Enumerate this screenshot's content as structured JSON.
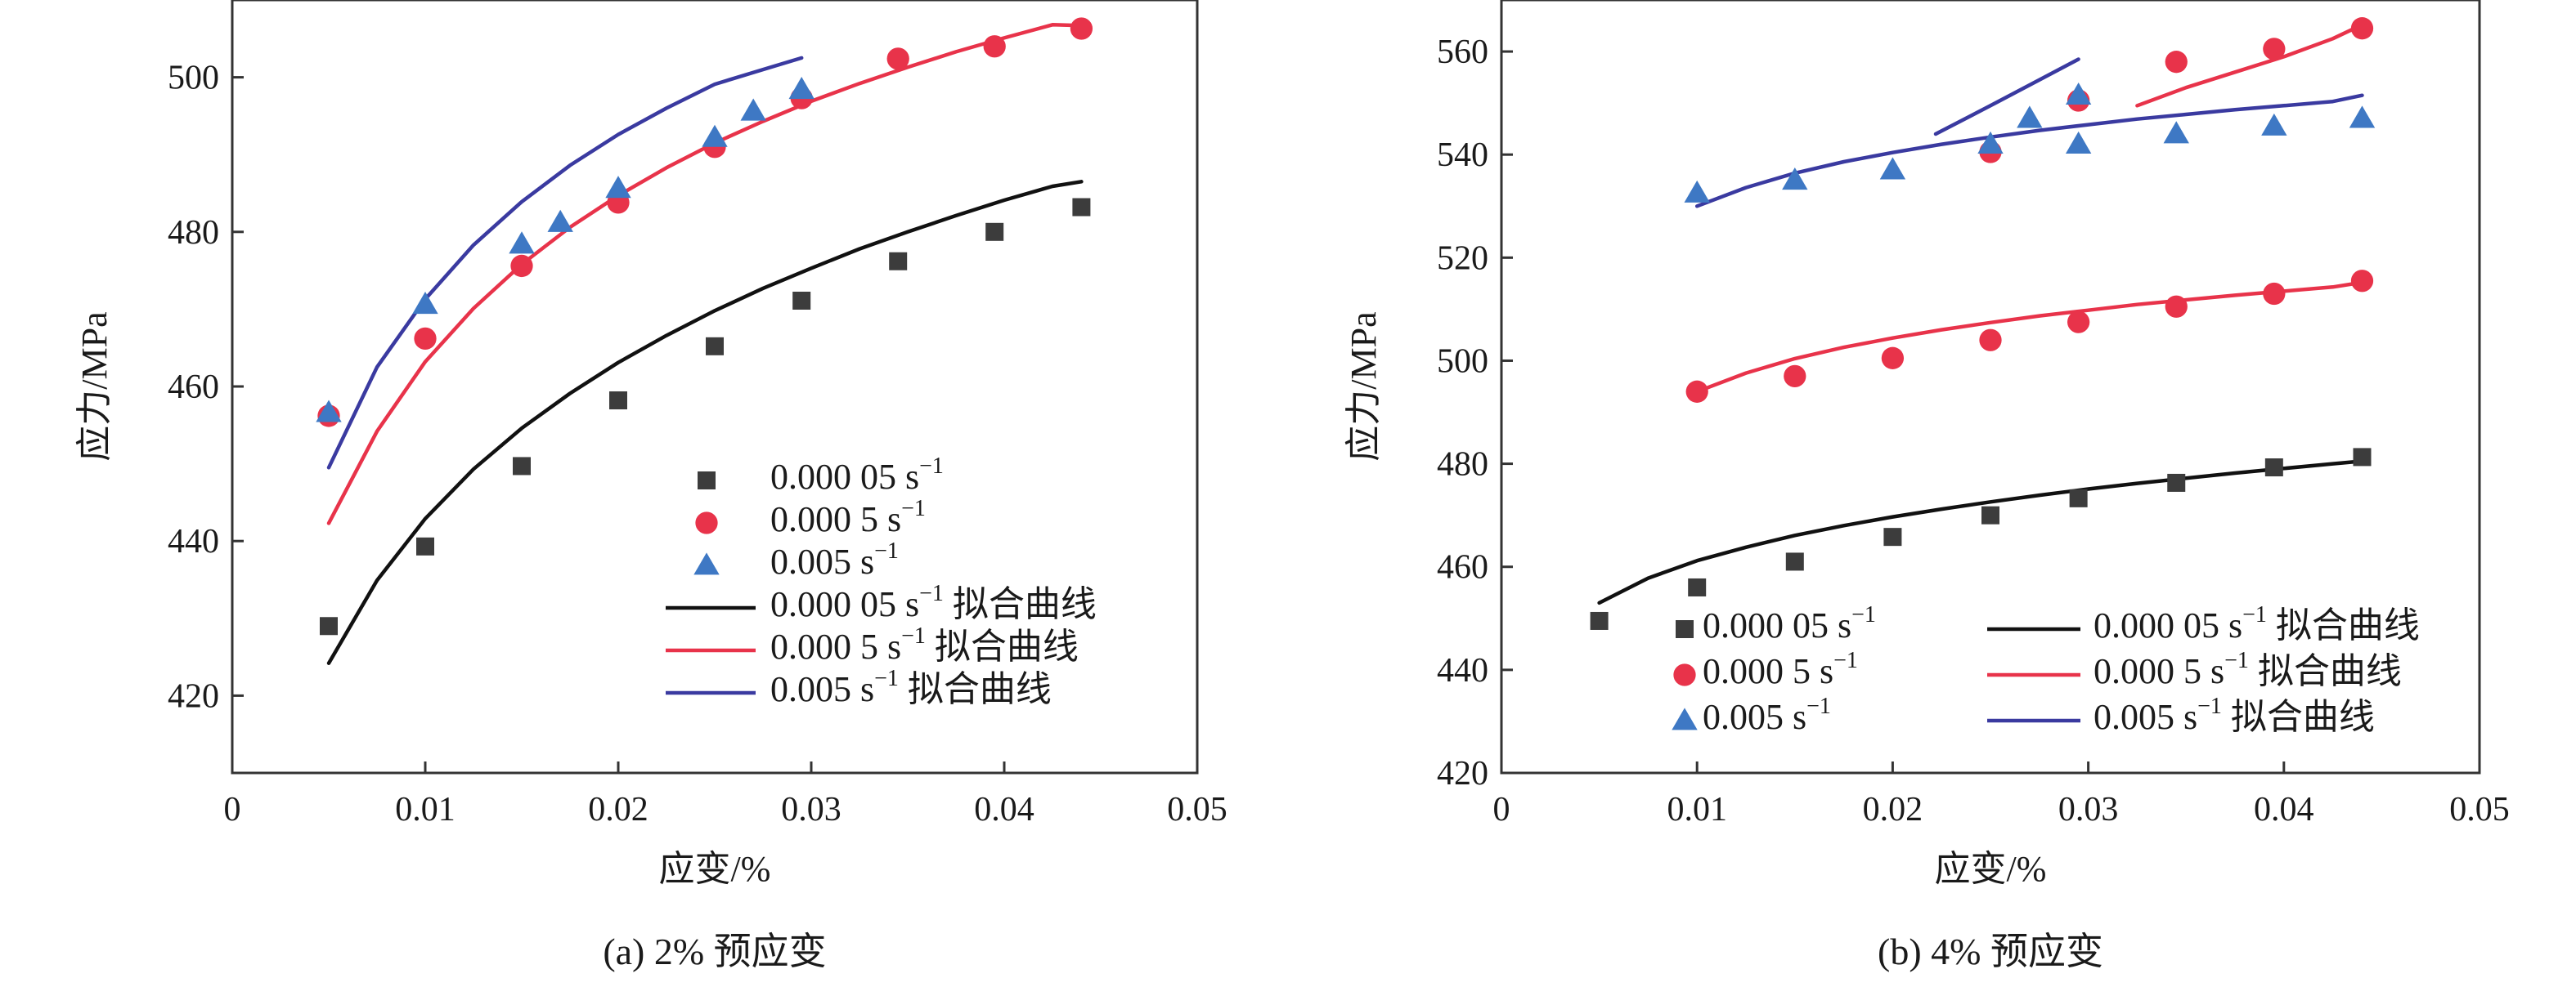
{
  "chart_data": [
    {
      "type": "scatter",
      "caption": "(a) 2% 预应变",
      "xlabel": "应变/%",
      "ylabel": "应力/MPa",
      "xlim": [
        0,
        0.05
      ],
      "ylim": [
        410,
        510
      ],
      "xticks": [
        0,
        0.01,
        0.02,
        0.03,
        0.04,
        0.05
      ],
      "xtick_labels": [
        "0",
        "0.01",
        "0.02",
        "0.03",
        "0.04",
        "0.05"
      ],
      "yticks": [
        420,
        440,
        460,
        480,
        500
      ],
      "ytick_labels": [
        "420",
        "440",
        "460",
        "480",
        "500"
      ],
      "legend_position": "lower-right",
      "series": [
        {
          "name": "0.000 05 s",
          "marker": "square",
          "color": "#3c3c3c",
          "x": [
            0.005,
            0.01,
            0.015,
            0.02,
            0.025,
            0.0295,
            0.0345,
            0.0395,
            0.044
          ],
          "y": [
            429,
            439.3,
            449.7,
            458.2,
            465.2,
            471.1,
            476.2,
            480.0,
            483.2
          ]
        },
        {
          "name": "0.000 5 s",
          "marker": "circle",
          "color": "#e8334a",
          "x": [
            0.005,
            0.01,
            0.015,
            0.02,
            0.025,
            0.0295,
            0.0345,
            0.0395,
            0.044
          ],
          "y": [
            456.2,
            466.2,
            475.6,
            483.8,
            491.0,
            497.3,
            502.4,
            504.0,
            506.3
          ]
        },
        {
          "name": "0.005 s",
          "marker": "triangle",
          "color": "#3e78c4",
          "x": [
            0.005,
            0.01,
            0.015,
            0.017,
            0.02,
            0.025,
            0.027,
            0.0295
          ],
          "y": [
            456.6,
            470.6,
            478.4,
            481.2,
            485.6,
            492.2,
            495.6,
            498.4
          ]
        }
      ],
      "fits": [
        {
          "name": "0.000 05 s",
          "suffix": "拟合曲线",
          "color": "#111111",
          "x": [
            0.005,
            0.0075,
            0.01,
            0.0125,
            0.015,
            0.0175,
            0.02,
            0.0225,
            0.025,
            0.0275,
            0.03,
            0.0325,
            0.035,
            0.0375,
            0.04,
            0.0425,
            0.044
          ],
          "y": [
            424.2,
            434.9,
            442.9,
            449.3,
            454.6,
            459.1,
            463.1,
            466.6,
            469.8,
            472.7,
            475.3,
            477.8,
            480.0,
            482.1,
            484.1,
            485.9,
            486.5
          ]
        },
        {
          "name": "0.000 5 s",
          "suffix": "拟合曲线",
          "color": "#e8334a",
          "x": [
            0.005,
            0.0075,
            0.01,
            0.0125,
            0.015,
            0.0175,
            0.02,
            0.0225,
            0.025,
            0.0275,
            0.03,
            0.0325,
            0.035,
            0.0375,
            0.04,
            0.0425,
            0.044
          ],
          "y": [
            442.3,
            454.2,
            463.2,
            470.1,
            475.8,
            480.6,
            484.7,
            488.3,
            491.5,
            494.3,
            496.9,
            499.2,
            501.3,
            503.3,
            505.1,
            506.8,
            506.7
          ]
        },
        {
          "name": "0.005 s",
          "suffix": "拟合曲线",
          "color": "#3a3aa0",
          "x": [
            0.005,
            0.0075,
            0.01,
            0.0125,
            0.015,
            0.0175,
            0.02,
            0.0225,
            0.025,
            0.0275,
            0.0295
          ],
          "y": [
            449.5,
            462.5,
            471.3,
            478.3,
            483.9,
            488.6,
            492.6,
            496.0,
            499.1,
            501.0,
            502.5
          ]
        }
      ]
    },
    {
      "type": "scatter",
      "caption": "(b) 4% 预应变",
      "xlabel": "应变/%",
      "ylabel": "应力/MPa",
      "xlim": [
        0,
        0.05
      ],
      "ylim": [
        420,
        570
      ],
      "xticks": [
        0,
        0.01,
        0.02,
        0.03,
        0.04,
        0.05
      ],
      "xtick_labels": [
        "0",
        "0.01",
        "0.02",
        "0.03",
        "0.04",
        "0.05"
      ],
      "yticks": [
        420,
        440,
        460,
        480,
        500,
        520,
        540,
        560
      ],
      "ytick_labels": [
        "420",
        "440",
        "460",
        "480",
        "500",
        "520",
        "540",
        "560"
      ],
      "legend_position": "bottom",
      "series": [
        {
          "name": "0.000 05 s",
          "marker": "square",
          "color": "#3c3c3c",
          "x": [
            0.005,
            0.01,
            0.015,
            0.02,
            0.025,
            0.0295,
            0.0345,
            0.0395,
            0.044
          ],
          "y": [
            449.5,
            456.0,
            461.0,
            465.8,
            470.0,
            473.3,
            476.3,
            479.3,
            481.3
          ]
        },
        {
          "name": "0.000 5 s",
          "marker": "circle",
          "color": "#e8334a",
          "x": [
            0.01,
            0.015,
            0.02,
            0.025,
            0.0295,
            0.0345,
            0.0395,
            0.044,
            0.025,
            0.0295,
            0.0345,
            0.0395,
            0.044
          ],
          "y": [
            494.0,
            497.0,
            500.5,
            504.0,
            507.5,
            510.5,
            513.0,
            515.5,
            540.5,
            550.5,
            558.0,
            560.5,
            564.5
          ]
        },
        {
          "name": "0.005 s",
          "marker": "triangle",
          "color": "#3e78c4",
          "x": [
            0.01,
            0.015,
            0.02,
            0.025,
            0.027,
            0.0295,
            0.0295,
            0.0345,
            0.0395,
            0.044
          ],
          "y": [
            532.5,
            535.0,
            537.0,
            542.0,
            547.0,
            551.5,
            542.0,
            544.0,
            545.5,
            547.0
          ]
        }
      ],
      "fits": [
        {
          "name": "0.000 05 s",
          "suffix": "拟合曲线",
          "color": "#111111",
          "x": [
            0.005,
            0.0075,
            0.01,
            0.0125,
            0.015,
            0.0175,
            0.02,
            0.0225,
            0.025,
            0.0275,
            0.03,
            0.0325,
            0.035,
            0.0375,
            0.04,
            0.0425,
            0.044
          ],
          "y": [
            453.0,
            457.8,
            461.2,
            463.8,
            466.1,
            468.0,
            469.7,
            471.2,
            472.6,
            473.9,
            475.1,
            476.2,
            477.2,
            478.2,
            479.1,
            480.0,
            480.5
          ]
        },
        {
          "name": "0.000 5 s",
          "suffix": "拟合曲线",
          "color": "#e8334a",
          "x": [
            0.01,
            0.0125,
            0.015,
            0.0175,
            0.02,
            0.0225,
            0.025,
            0.0275,
            0.03,
            0.0325,
            0.035,
            0.0375,
            0.04,
            0.0425,
            0.044
          ],
          "y": [
            494.0,
            497.6,
            500.4,
            502.6,
            504.4,
            506.0,
            507.4,
            508.7,
            509.8,
            510.9,
            511.8,
            512.7,
            513.5,
            514.3,
            515.2
          ]
        },
        {
          "name": "0.005 s",
          "suffix": "拟合曲线",
          "color": "#3a3aa0",
          "x": [
            0.01,
            0.0125,
            0.015,
            0.0175,
            0.02,
            0.0225,
            0.025,
            0.0275,
            0.03,
            0.0325,
            0.035,
            0.0375,
            0.04,
            0.0425,
            0.044
          ],
          "y": [
            530.0,
            533.6,
            536.4,
            538.6,
            540.4,
            542.0,
            543.4,
            544.7,
            545.8,
            546.9,
            547.8,
            548.7,
            549.5,
            550.3,
            551.5
          ]
        },
        {
          "name": "",
          "suffix": "",
          "color": "#3a3aa0",
          "x": [
            0.0222,
            0.025,
            0.0275,
            0.0295
          ],
          "y": [
            544.0,
            549.5,
            554.5,
            558.5
          ]
        },
        {
          "name": "",
          "suffix": "",
          "color": "#e8334a",
          "x": [
            0.0325,
            0.035,
            0.0375,
            0.04,
            0.0425,
            0.044
          ],
          "y": [
            549.5,
            553.0,
            556.0,
            559.0,
            562.5,
            565.2
          ]
        }
      ]
    }
  ]
}
